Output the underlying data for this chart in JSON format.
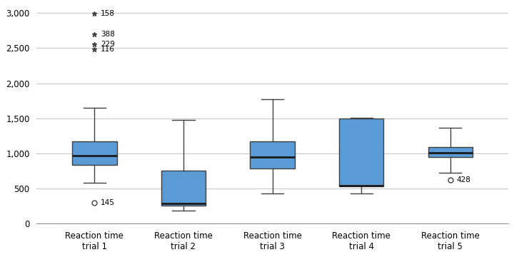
{
  "boxes": [
    {
      "label": "Reaction time\ntrial 1",
      "q1": 835,
      "median": 970,
      "q3": 1170,
      "whislo": 580,
      "whishi": 1650,
      "fliers_circle": [
        {
          "y": 300,
          "label": "145"
        }
      ],
      "fliers_star": [
        {
          "y": 2990,
          "label": "158"
        },
        {
          "y": 2700,
          "label": "388"
        },
        {
          "y": 2555,
          "label": "229"
        },
        {
          "y": 2480,
          "label": "116"
        }
      ]
    },
    {
      "label": "Reaction time\ntrial 2",
      "q1": 255,
      "median": 285,
      "q3": 755,
      "whislo": 185,
      "whishi": 1475,
      "fliers_circle": [],
      "fliers_star": []
    },
    {
      "label": "Reaction time\ntrial 3",
      "q1": 790,
      "median": 950,
      "q3": 1170,
      "whislo": 430,
      "whishi": 1775,
      "fliers_circle": [],
      "fliers_star": []
    },
    {
      "label": "Reaction time\ntrial 4",
      "q1": 530,
      "median": 545,
      "q3": 1500,
      "whislo": 430,
      "whishi": 1505,
      "fliers_circle": [],
      "fliers_star": []
    },
    {
      "label": "Reaction time\ntrial 5",
      "q1": 950,
      "median": 1010,
      "q3": 1095,
      "whislo": 720,
      "whishi": 1360,
      "fliers_circle": [
        {
          "y": 620,
          "label": "428"
        }
      ],
      "fliers_star": []
    }
  ],
  "ylim": [
    0,
    3100
  ],
  "yticks": [
    0,
    500,
    1000,
    1500,
    2000,
    2500,
    3000
  ],
  "ytick_labels": [
    "0",
    "500",
    "1,000",
    "1,500",
    "2,000",
    "2,500",
    "3,000"
  ],
  "box_facecolor": "#5B9BD5",
  "box_edgecolor": "#404040",
  "median_color": "#1A1A1A",
  "whisker_color": "#404040",
  "cap_color": "#404040",
  "outlier_circle_facecolor": "none",
  "outlier_circle_edgecolor": "#404040",
  "outlier_star_color": "#404040",
  "background_color": "#FFFFFF",
  "grid_color": "#C8C8C8",
  "tick_label_fontsize": 8.5,
  "axis_label_fontsize": 8.5,
  "annotation_fontsize": 7.5
}
